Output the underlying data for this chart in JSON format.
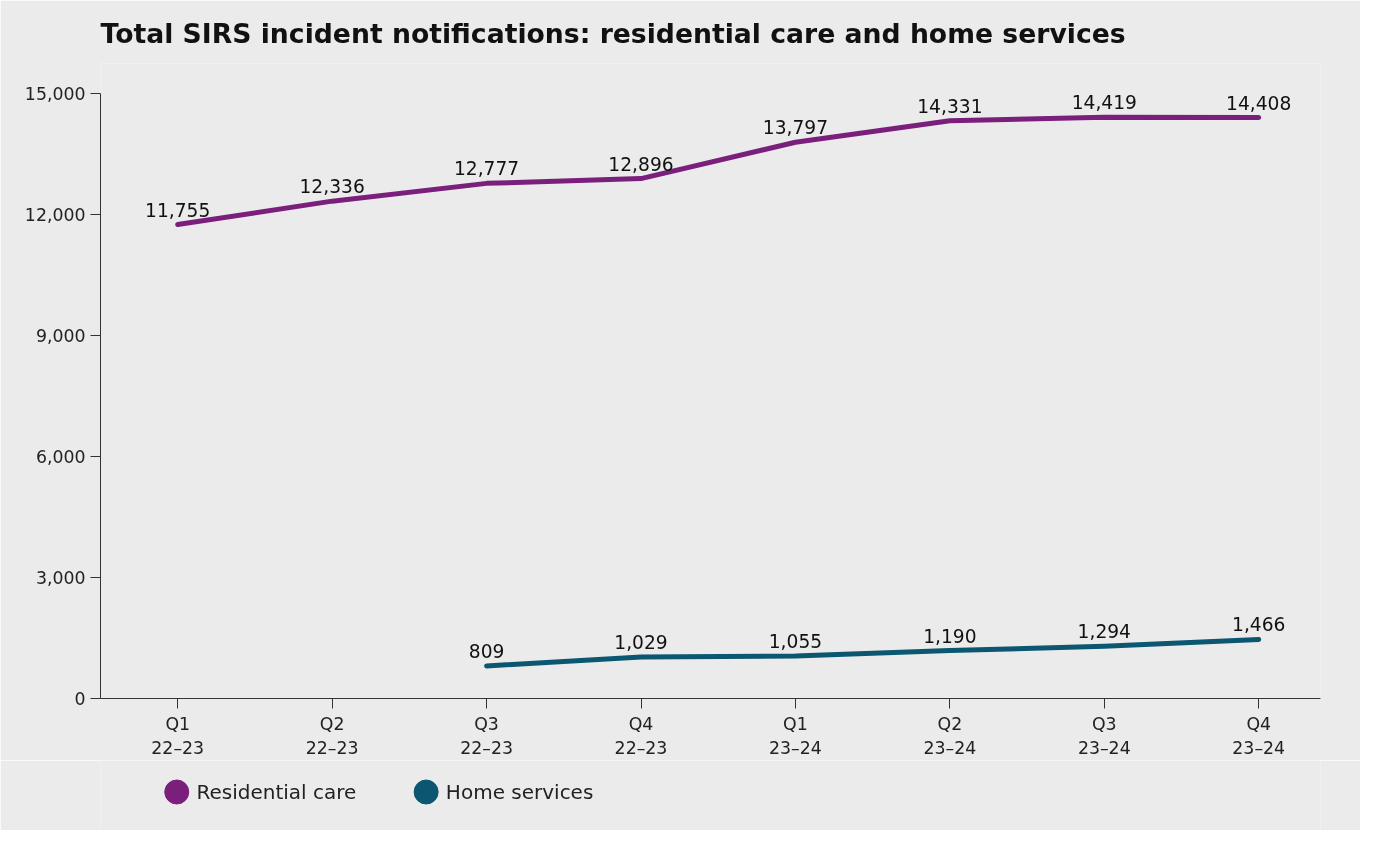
{
  "chart_data": {
    "type": "line",
    "title": "Total SIRS incident notifications: residential care and home services",
    "categories": [
      "Q1\n22–23",
      "Q2\n22–23",
      "Q3\n22–23",
      "Q4\n22–23",
      "Q1\n23–24",
      "Q2\n23–24",
      "Q3\n23–24",
      "Q4\n23–24"
    ],
    "series": [
      {
        "name": "Residential care",
        "color": "#7a1f7c",
        "values": [
          11755,
          12336,
          12777,
          12896,
          13797,
          14331,
          14419,
          14408
        ],
        "value_labels": [
          "11,755",
          "12,336",
          "12,777",
          "12,896",
          "13,797",
          "14,331",
          "14,419",
          "14,408"
        ]
      },
      {
        "name": "Home services",
        "color": "#0b5670",
        "values": [
          null,
          null,
          809,
          1029,
          1055,
          1190,
          1294,
          1466
        ],
        "value_labels": [
          null,
          null,
          "809",
          "1,029",
          "1,055",
          "1,190",
          "1,294",
          "1,466"
        ]
      }
    ],
    "ylim": [
      0,
      15000
    ],
    "yticks": [
      {
        "value": 0,
        "label": "0"
      },
      {
        "value": 3000,
        "label": "3,000"
      },
      {
        "value": 6000,
        "label": "6,000"
      },
      {
        "value": 9000,
        "label": "9,000"
      },
      {
        "value": 12000,
        "label": "12,000"
      },
      {
        "value": 15000,
        "label": "15,000"
      }
    ],
    "data_labels": true,
    "legend": "bottom",
    "grid": false,
    "marker": "none",
    "line_style": "solid"
  }
}
